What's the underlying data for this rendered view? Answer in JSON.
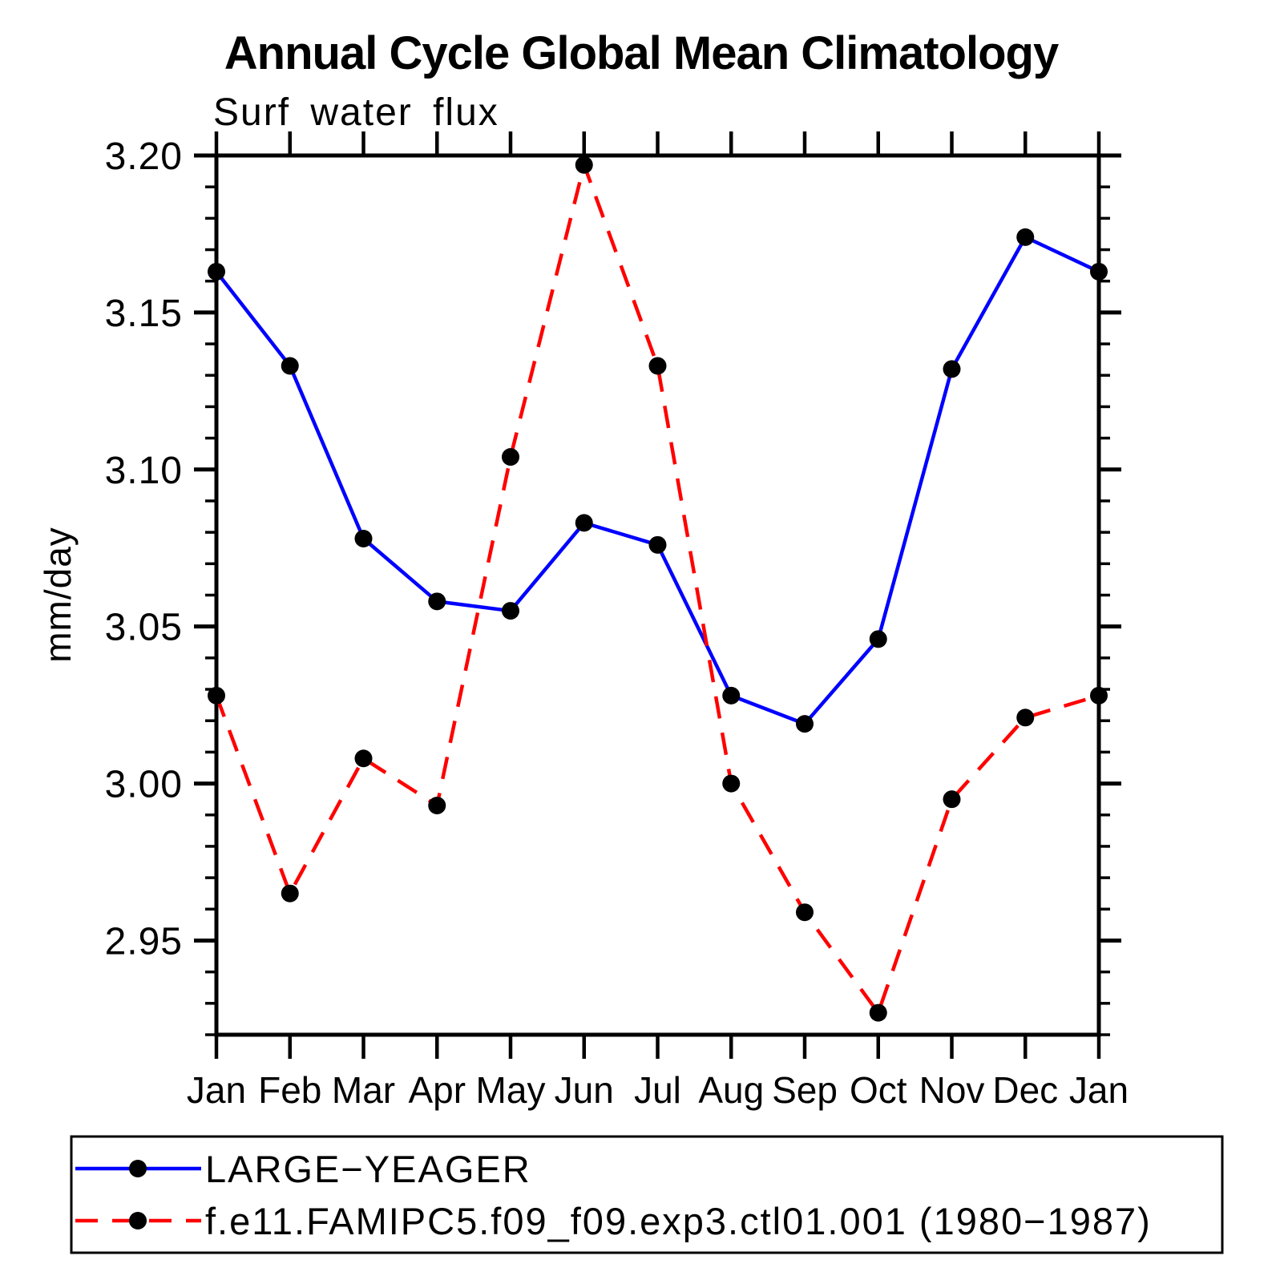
{
  "chart_data": {
    "type": "line",
    "title": "Annual Cycle Global Mean Climatology",
    "subtitle": "Surf water flux",
    "ylabel": "mm/day",
    "xlabel": "",
    "x_categories": [
      "Jan",
      "Feb",
      "Mar",
      "Apr",
      "May",
      "Jun",
      "Jul",
      "Aug",
      "Sep",
      "Oct",
      "Nov",
      "Dec",
      "Jan"
    ],
    "ylim": [
      2.92,
      3.2
    ],
    "y_major_ticks": [
      2.95,
      3.0,
      3.05,
      3.1,
      3.15,
      3.2
    ],
    "y_minor_step": 0.01,
    "grid": false,
    "legend_position": "bottom",
    "series": [
      {
        "name": "LARGE−YEAGER",
        "color": "#0000ff",
        "style": "solid",
        "marker": "circle",
        "marker_color": "#000000",
        "values": [
          3.163,
          3.133,
          3.078,
          3.058,
          3.055,
          3.083,
          3.076,
          3.028,
          3.019,
          3.046,
          3.132,
          3.174,
          3.163
        ]
      },
      {
        "name": "f.e11.FAMIPC5.f09_f09.exp3.ctl01.001 (1980−1987)",
        "color": "#ff0000",
        "style": "dashed",
        "marker": "circle",
        "marker_color": "#000000",
        "values": [
          3.028,
          2.965,
          3.008,
          2.993,
          3.104,
          3.197,
          3.133,
          3.0,
          2.959,
          2.927,
          2.995,
          3.021,
          3.028
        ]
      }
    ]
  },
  "colors": {
    "axis": "#000000",
    "background": "#ffffff",
    "series_blue": "#0000ff",
    "series_red": "#ff0000",
    "marker": "#000000"
  }
}
